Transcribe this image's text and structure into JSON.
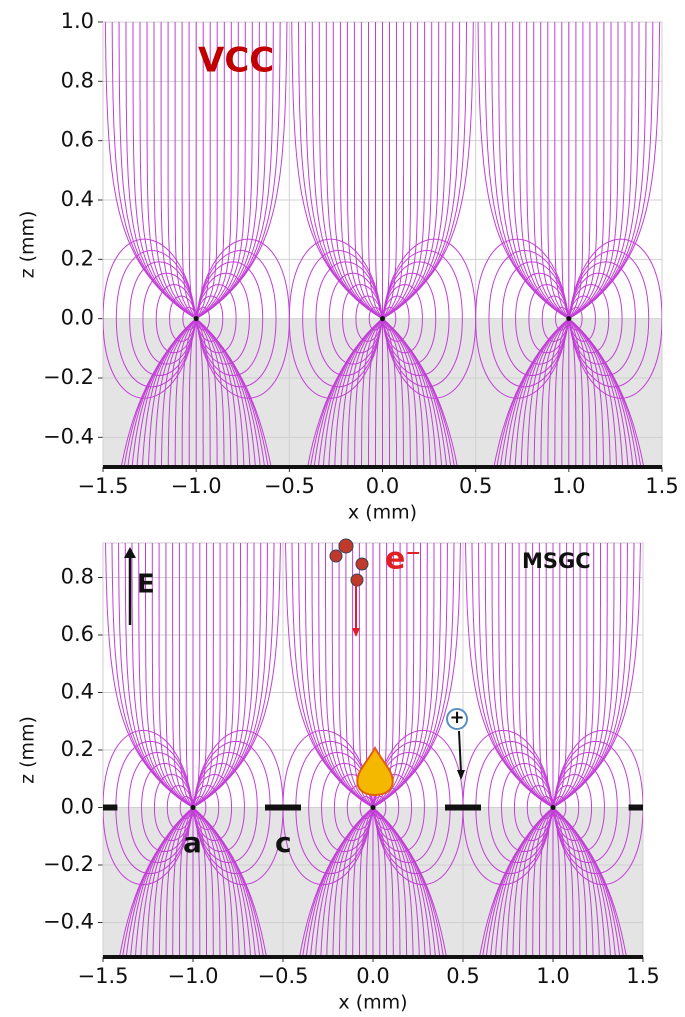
{
  "chart_data": [
    {
      "type": "field",
      "annotations": {
        "label": "VCC"
      },
      "xlabel": "x (mm)",
      "ylabel": "z (mm)",
      "xlim": [
        -1.5,
        1.5
      ],
      "ylim": [
        -0.5,
        1.0
      ],
      "electrodes": [
        -1.0,
        0.0,
        1.0
      ],
      "xticks": [
        {
          "value": -1.5,
          "label": "−1.5"
        },
        {
          "value": -1.0,
          "label": "−1.0"
        },
        {
          "value": -0.5,
          "label": "−0.5"
        },
        {
          "value": 0.0,
          "label": "0.0"
        },
        {
          "value": 0.5,
          "label": "0.5"
        },
        {
          "value": 1.0,
          "label": "1.0"
        },
        {
          "value": 1.5,
          "label": "1.5"
        }
      ],
      "yticks": [
        {
          "value": -0.4,
          "label": "−0.4"
        },
        {
          "value": -0.2,
          "label": "−0.2"
        },
        {
          "value": 0.0,
          "label": "0.0"
        },
        {
          "value": 0.2,
          "label": "0.2"
        },
        {
          "value": 0.4,
          "label": "0.4"
        },
        {
          "value": 0.6,
          "label": "0.6"
        },
        {
          "value": 0.8,
          "label": "0.8"
        },
        {
          "value": 1.0,
          "label": "1.0"
        }
      ],
      "grid": true,
      "color": "#c23fd6"
    },
    {
      "type": "field",
      "annotations": {
        "label": "MSGC",
        "field": "E",
        "electron": "e⁻",
        "ion": "+",
        "anode": "a",
        "cathode": "c"
      },
      "xlabel": "x (mm)",
      "ylabel": "z (mm)",
      "xlim": [
        -1.5,
        1.5
      ],
      "ylim": [
        -0.52,
        0.92
      ],
      "electrodes": [
        -1.0,
        0.0,
        1.0
      ],
      "xticks": [
        {
          "value": -1.5,
          "label": "−1.5"
        },
        {
          "value": -1.0,
          "label": "−1.0"
        },
        {
          "value": -0.5,
          "label": "−0.5"
        },
        {
          "value": 0.0,
          "label": "0.0"
        },
        {
          "value": 0.5,
          "label": "0.5"
        },
        {
          "value": 1.0,
          "label": "1.0"
        },
        {
          "value": 1.5,
          "label": "1.5"
        }
      ],
      "yticks": [
        {
          "value": -0.4,
          "label": "−0.4"
        },
        {
          "value": -0.2,
          "label": "−0.2"
        },
        {
          "value": 0.0,
          "label": "0.0"
        },
        {
          "value": 0.2,
          "label": "0.2"
        },
        {
          "value": 0.4,
          "label": "0.4"
        },
        {
          "value": 0.6,
          "label": "0.6"
        },
        {
          "value": 0.8,
          "label": "0.8"
        }
      ],
      "grid": true,
      "color": "#c23fd6"
    }
  ]
}
